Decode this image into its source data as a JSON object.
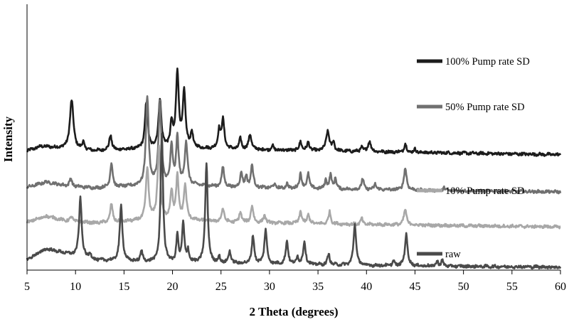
{
  "chart_data": {
    "type": "line",
    "xlabel": "2 Theta (degrees)",
    "ylabel": "Intensity",
    "xlim": [
      5,
      60
    ],
    "x_ticks": [
      5,
      10,
      15,
      20,
      25,
      30,
      35,
      40,
      45,
      50,
      55,
      60
    ],
    "y_ticks_shown": false,
    "grid": false,
    "series": [
      {
        "name": "100% Pump rate SD",
        "color": "#1c1c1c",
        "baseline": 7.6,
        "background": [
          [
            5,
            0.25
          ],
          [
            6.5,
            0.55
          ],
          [
            8,
            0.45
          ],
          [
            12,
            0.25
          ],
          [
            20,
            0.45
          ],
          [
            26,
            0.35
          ],
          [
            35,
            0.25
          ],
          [
            50,
            0.1
          ],
          [
            60,
            0.0
          ]
        ],
        "peaks": [
          [
            9.6,
            3.2,
            0.22
          ],
          [
            10.8,
            0.5,
            0.12
          ],
          [
            13.6,
            1.0,
            0.15
          ],
          [
            17.3,
            3.0,
            0.17
          ],
          [
            18.7,
            3.2,
            0.17
          ],
          [
            19.9,
            1.5,
            0.15
          ],
          [
            20.5,
            5.0,
            0.17
          ],
          [
            21.2,
            3.6,
            0.17
          ],
          [
            22.0,
            1.0,
            0.14
          ],
          [
            24.8,
            1.2,
            0.14
          ],
          [
            25.2,
            1.9,
            0.17
          ],
          [
            27.0,
            0.7,
            0.14
          ],
          [
            28.0,
            1.0,
            0.17
          ],
          [
            30.3,
            0.3,
            0.12
          ],
          [
            33.2,
            0.6,
            0.14
          ],
          [
            34.0,
            0.55,
            0.14
          ],
          [
            36.0,
            1.3,
            0.2
          ],
          [
            36.6,
            0.6,
            0.12
          ],
          [
            39.5,
            0.3,
            0.12
          ],
          [
            40.3,
            0.7,
            0.17
          ],
          [
            44.0,
            0.55,
            0.14
          ],
          [
            45.0,
            0.2,
            0.12
          ]
        ]
      },
      {
        "name": "50% Pump rate SD",
        "color": "#707070",
        "baseline": 5.1,
        "background": [
          [
            5,
            0.35
          ],
          [
            7,
            0.7
          ],
          [
            9,
            0.45
          ],
          [
            12,
            0.3
          ],
          [
            20,
            0.55
          ],
          [
            26,
            0.35
          ],
          [
            35,
            0.25
          ],
          [
            50,
            0.12
          ],
          [
            60,
            0.05
          ]
        ],
        "peaks": [
          [
            9.5,
            0.5,
            0.15
          ],
          [
            13.7,
            1.6,
            0.15
          ],
          [
            17.4,
            5.8,
            0.17
          ],
          [
            18.7,
            5.4,
            0.17
          ],
          [
            19.9,
            2.4,
            0.15
          ],
          [
            20.5,
            3.1,
            0.15
          ],
          [
            21.4,
            2.8,
            0.17
          ],
          [
            25.2,
            1.3,
            0.15
          ],
          [
            27.1,
            1.0,
            0.14
          ],
          [
            27.6,
            0.7,
            0.12
          ],
          [
            28.2,
            1.5,
            0.15
          ],
          [
            30.5,
            0.3,
            0.12
          ],
          [
            31.8,
            0.3,
            0.12
          ],
          [
            33.2,
            1.0,
            0.14
          ],
          [
            34.0,
            1.0,
            0.14
          ],
          [
            35.8,
            0.6,
            0.12
          ],
          [
            36.3,
            0.9,
            0.14
          ],
          [
            36.8,
            0.7,
            0.12
          ],
          [
            39.6,
            0.7,
            0.14
          ],
          [
            40.9,
            0.4,
            0.12
          ],
          [
            44.0,
            1.4,
            0.17
          ],
          [
            48.0,
            0.2,
            0.12
          ]
        ]
      },
      {
        "name": "10% Pump rate SD",
        "color": "#a8a8a8",
        "baseline": 2.8,
        "background": [
          [
            5,
            0.35
          ],
          [
            7,
            0.75
          ],
          [
            9,
            0.45
          ],
          [
            12,
            0.3
          ],
          [
            20,
            0.55
          ],
          [
            26,
            0.35
          ],
          [
            35,
            0.25
          ],
          [
            50,
            0.12
          ],
          [
            60,
            0.05
          ]
        ],
        "peaks": [
          [
            9.6,
            0.3,
            0.15
          ],
          [
            13.7,
            1.2,
            0.15
          ],
          [
            17.4,
            3.4,
            0.17
          ],
          [
            18.6,
            4.8,
            0.17
          ],
          [
            19.9,
            1.8,
            0.15
          ],
          [
            20.5,
            2.8,
            0.15
          ],
          [
            21.3,
            2.2,
            0.17
          ],
          [
            25.2,
            0.9,
            0.15
          ],
          [
            27.0,
            0.7,
            0.14
          ],
          [
            28.2,
            1.1,
            0.15
          ],
          [
            29.5,
            0.5,
            0.14
          ],
          [
            33.2,
            0.8,
            0.14
          ],
          [
            34.0,
            0.6,
            0.14
          ],
          [
            36.2,
            0.8,
            0.14
          ],
          [
            39.5,
            0.4,
            0.12
          ],
          [
            44.0,
            1.0,
            0.17
          ]
        ]
      },
      {
        "name": "raw",
        "color": "#4a4a4a",
        "baseline": 0.2,
        "background": [
          [
            5,
            0.5
          ],
          [
            7,
            1.2
          ],
          [
            9,
            0.9
          ],
          [
            12,
            0.45
          ],
          [
            18,
            0.3
          ],
          [
            25,
            0.25
          ],
          [
            40,
            0.1
          ],
          [
            60,
            0.0
          ]
        ],
        "peaks": [
          [
            10.5,
            3.9,
            0.16
          ],
          [
            11.5,
            0.4,
            0.12
          ],
          [
            14.7,
            3.7,
            0.16
          ],
          [
            16.8,
            0.7,
            0.14
          ],
          [
            18.9,
            8.5,
            0.15
          ],
          [
            20.5,
            1.8,
            0.12
          ],
          [
            21.1,
            2.6,
            0.14
          ],
          [
            21.6,
            0.8,
            0.12
          ],
          [
            23.5,
            6.6,
            0.15
          ],
          [
            24.8,
            0.4,
            0.12
          ],
          [
            25.9,
            0.8,
            0.14
          ],
          [
            28.3,
            1.8,
            0.15
          ],
          [
            29.6,
            2.3,
            0.15
          ],
          [
            31.8,
            1.5,
            0.15
          ],
          [
            32.9,
            0.5,
            0.12
          ],
          [
            33.6,
            1.5,
            0.15
          ],
          [
            36.1,
            0.7,
            0.14
          ],
          [
            38.8,
            2.7,
            0.16
          ],
          [
            42.8,
            0.3,
            0.12
          ],
          [
            44.1,
            2.1,
            0.16
          ],
          [
            47.3,
            0.3,
            0.12
          ],
          [
            47.8,
            0.4,
            0.12
          ]
        ]
      }
    ],
    "legend": [
      {
        "label": "100% Pump rate SD",
        "color": "#1c1c1c"
      },
      {
        "label": "50% Pump rate SD",
        "color": "#707070"
      },
      {
        "label": "10% Pump rate SD",
        "color": "#a8a8a8"
      },
      {
        "label": "raw",
        "color": "#4a4a4a"
      }
    ]
  }
}
